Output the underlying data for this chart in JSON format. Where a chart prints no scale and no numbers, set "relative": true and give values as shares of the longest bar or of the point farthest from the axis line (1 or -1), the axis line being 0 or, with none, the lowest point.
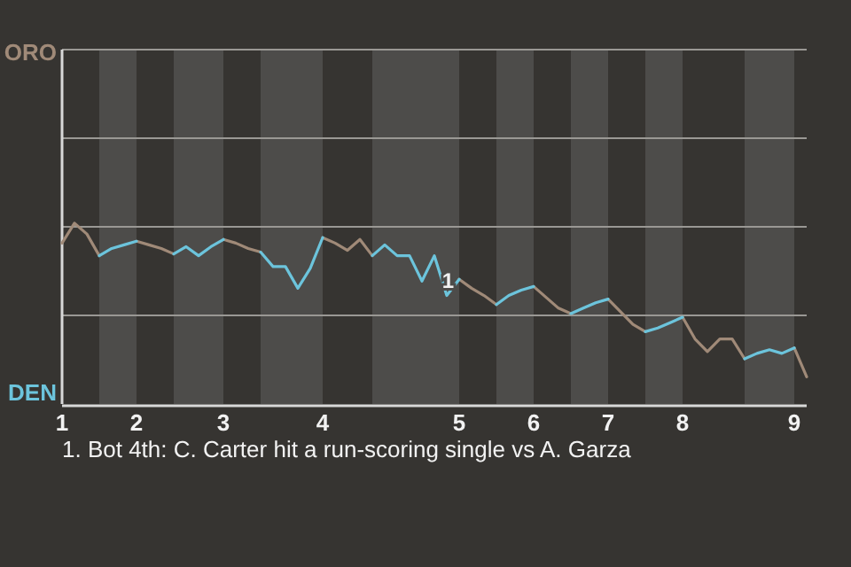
{
  "chart_data": {
    "type": "line",
    "relative": true,
    "categories": [
      "1",
      null,
      null,
      null,
      null,
      null,
      "2",
      null,
      null,
      null,
      null,
      null,
      null,
      "3",
      null,
      null,
      null,
      null,
      null,
      null,
      null,
      "4",
      null,
      null,
      null,
      null,
      null,
      null,
      null,
      null,
      null,
      null,
      "5",
      null,
      null,
      null,
      null,
      null,
      "6",
      null,
      null,
      null,
      null,
      null,
      "7",
      null,
      null,
      null,
      null,
      null,
      "8",
      null,
      null,
      null,
      null,
      null,
      null,
      null,
      null,
      "9",
      null
    ],
    "series": [
      {
        "color": "#a08a78",
        "values": [
          0.89,
          1.0,
          0.94,
          0.82,
          null,
          null,
          0.9,
          0.88,
          0.86,
          0.83,
          null,
          null,
          null,
          0.91,
          0.89,
          0.86,
          0.84,
          null,
          null,
          null,
          null,
          0.92,
          0.89,
          0.85,
          0.91,
          0.82,
          null,
          null,
          null,
          null,
          null,
          null,
          0.69,
          0.64,
          0.6,
          0.55,
          null,
          null,
          0.65,
          0.59,
          0.53,
          0.5,
          null,
          null,
          0.58,
          0.51,
          0.44,
          0.4,
          null,
          null,
          0.48,
          0.36,
          0.29,
          0.36,
          0.36,
          0.25,
          null,
          null,
          null,
          0.31,
          0.15
        ]
      },
      {
        "color": "#6cc4dc",
        "values": [
          null,
          null,
          null,
          0.82,
          0.86,
          0.88,
          0.9,
          null,
          null,
          0.83,
          0.87,
          0.82,
          0.87,
          0.91,
          null,
          null,
          0.84,
          0.76,
          0.76,
          0.64,
          0.75,
          0.92,
          null,
          null,
          null,
          0.82,
          0.88,
          0.82,
          0.82,
          0.68,
          0.82,
          0.6,
          0.69,
          null,
          null,
          0.55,
          0.6,
          0.63,
          0.65,
          null,
          null,
          0.5,
          0.53,
          0.56,
          0.58,
          null,
          null,
          0.4,
          0.42,
          0.45,
          0.48,
          null,
          null,
          null,
          null,
          0.25,
          0.28,
          0.3,
          0.28,
          0.31,
          null
        ]
      }
    ],
    "ref_lines": [
      {
        "axis": "y",
        "value": 0.49,
        "color": "#9a9894"
      },
      {
        "axis": "y",
        "value": 0.98,
        "color": "#9a9894"
      },
      {
        "axis": "y",
        "value": 1.47,
        "color": "#9a9894"
      },
      {
        "axis": "y",
        "value": 1.96,
        "color": "#9a9894"
      }
    ],
    "annotations": [
      "ORO",
      "DEN",
      {
        "text": "1",
        "x": "5",
        "y": 0.69
      },
      "1. Bot 4th: C. Carter hit a run-scoring single vs A. Garza"
    ]
  }
}
